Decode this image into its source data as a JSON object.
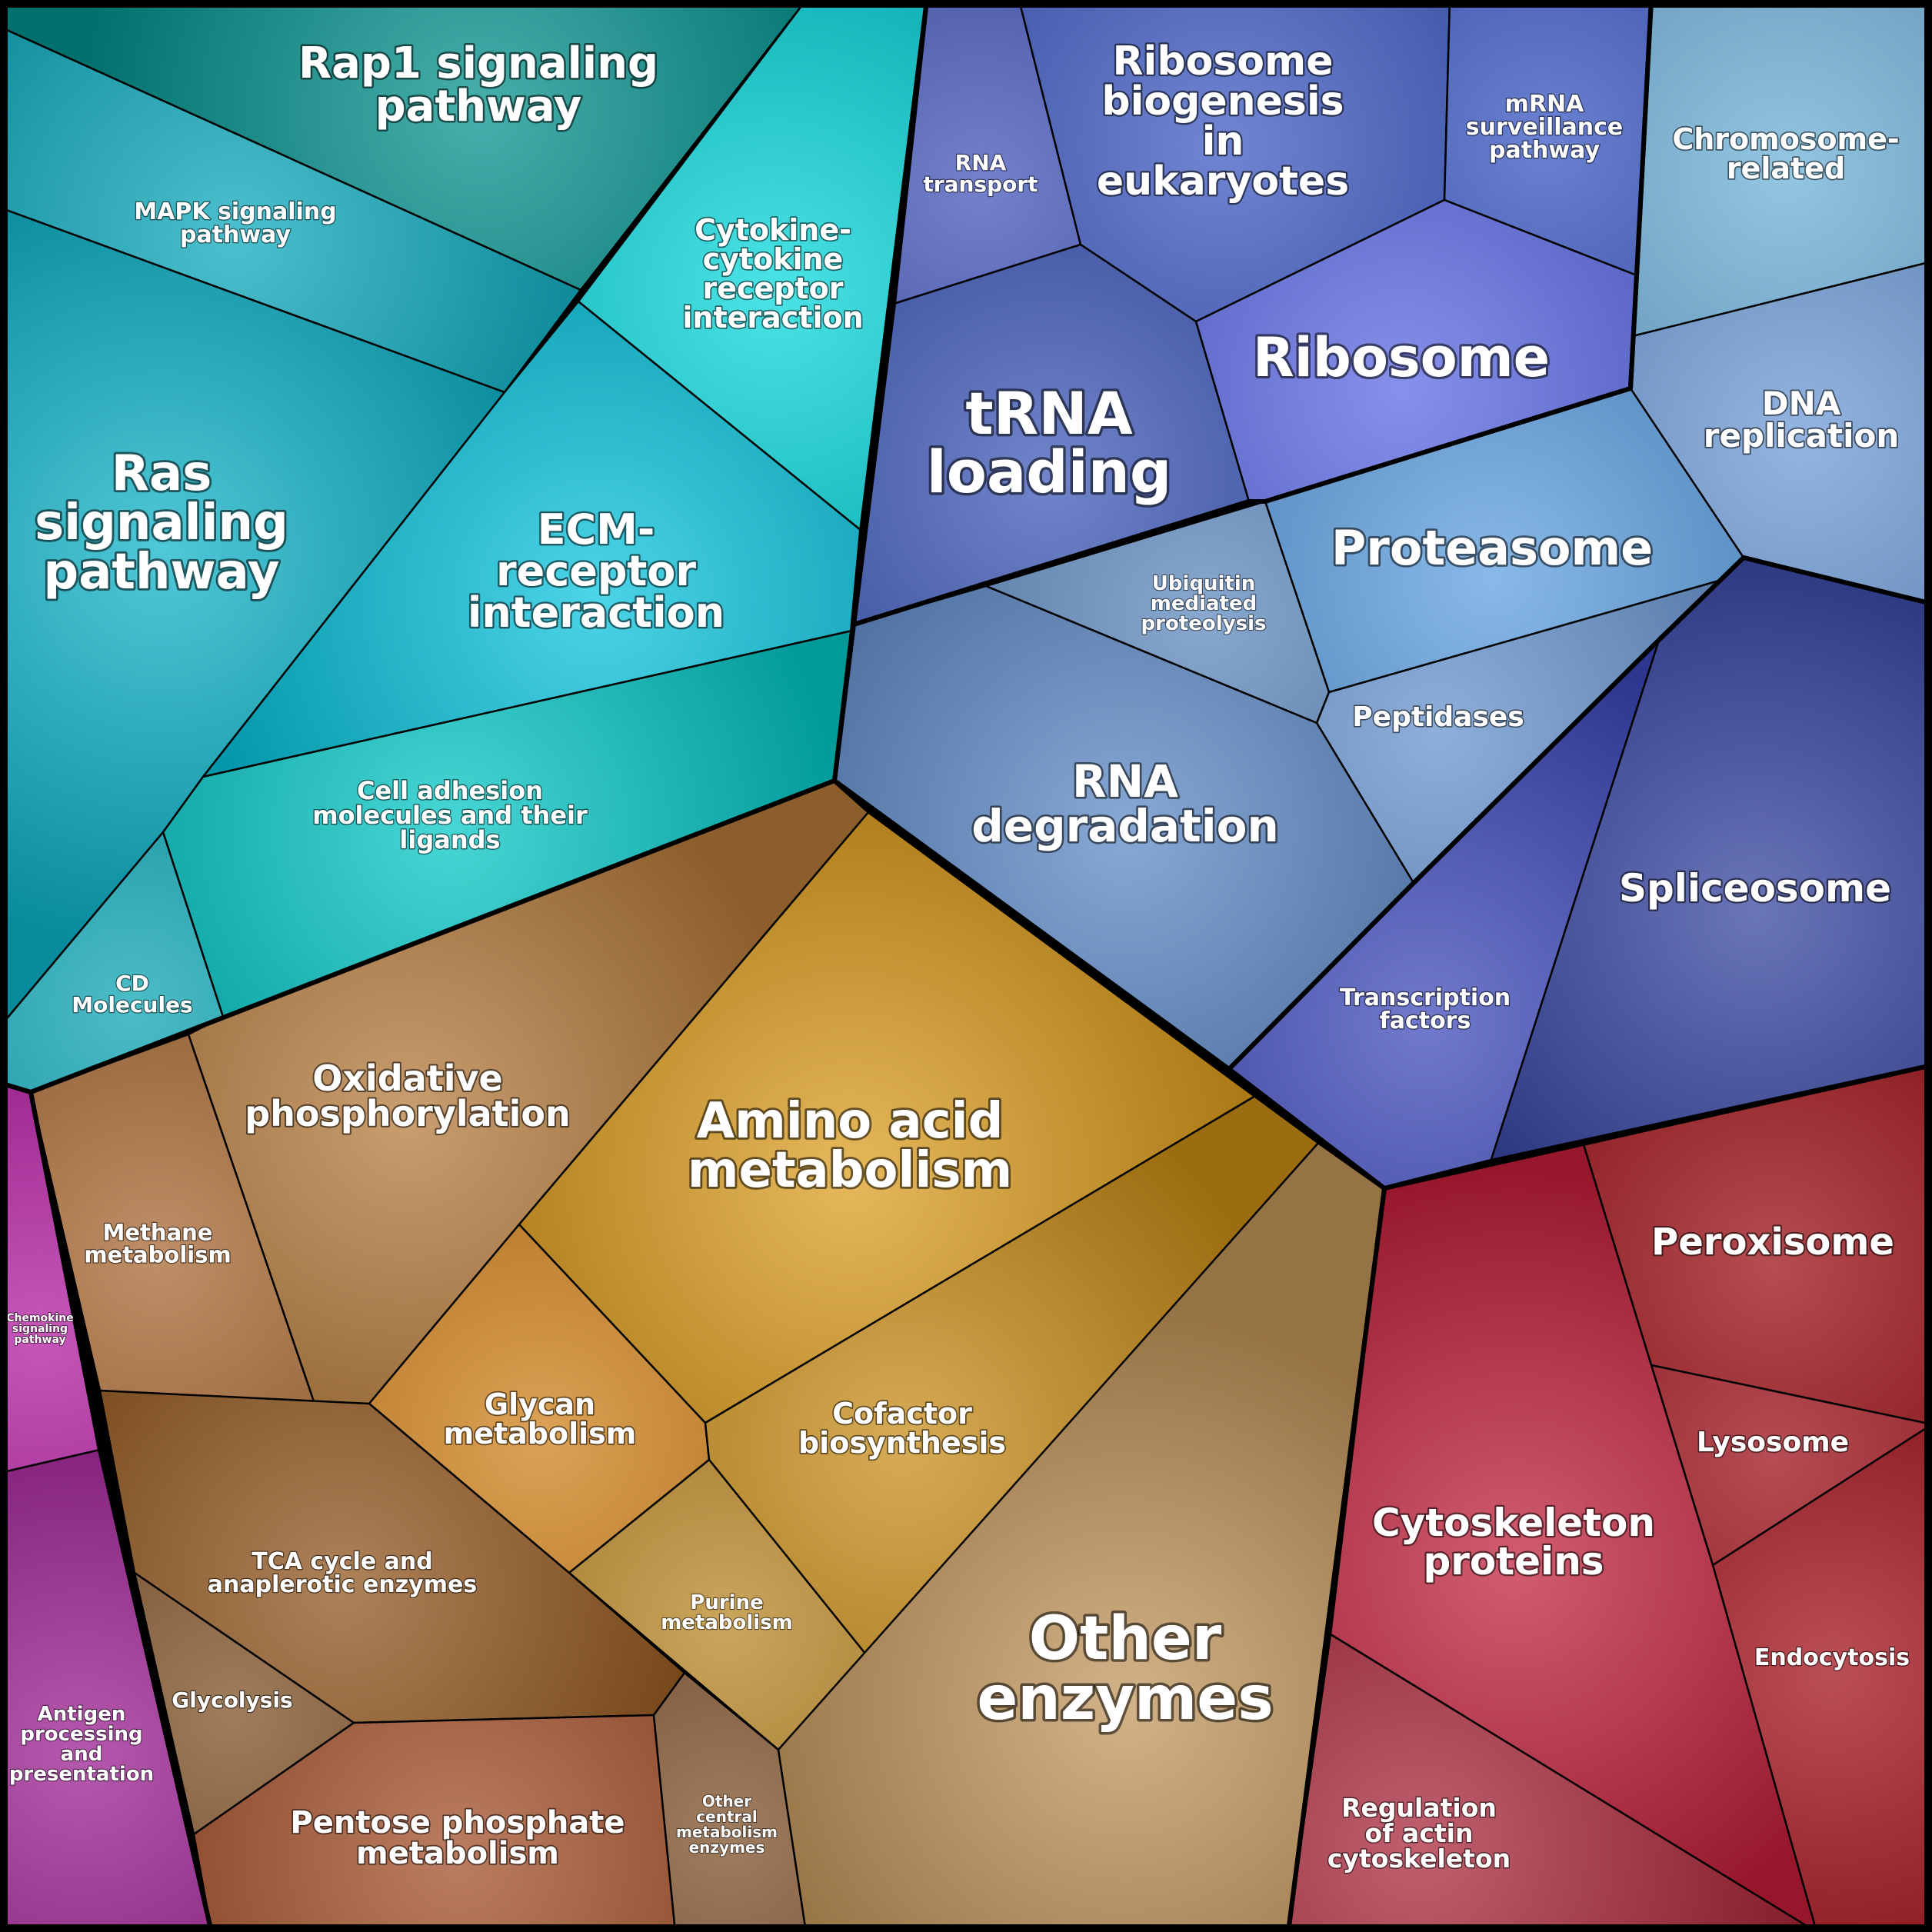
{
  "chart_data": {
    "type": "voronoi-treemap",
    "groups": [
      {
        "id": "signaling",
        "color": "#00c2cc",
        "cells": [
          {
            "id": "rap1",
            "label": "Rap1 signaling pathway",
            "color": "#00908c"
          },
          {
            "id": "mapk",
            "label": "MAPK signaling pathway",
            "color": "#06a7bb"
          },
          {
            "id": "ras",
            "label": "Ras signaling pathway",
            "color": "#0ab2c8"
          },
          {
            "id": "cytokine",
            "label": "Cytokine-cytokine receptor interaction",
            "color": "#05d8dc"
          },
          {
            "id": "ecm",
            "label": "ECM-receptor interaction",
            "color": "#06c3dd"
          },
          {
            "id": "celladh",
            "label": "Cell adhesion molecules and their ligands",
            "color": "#00c6c4"
          },
          {
            "id": "cd",
            "label": "CD Molecules",
            "color": "#05a3b2"
          }
        ]
      },
      {
        "id": "genetic-info",
        "color": "#4a5cd0",
        "cells": [
          {
            "id": "rnatransport",
            "label": "RNA transport",
            "color": "#3e50b8"
          },
          {
            "id": "ribobio",
            "label": "Ribosome biogenesis in eukaryotes",
            "color": "#3a57c2"
          },
          {
            "id": "mrna",
            "label": "mRNA surveillance pathway",
            "color": "#3150c0"
          },
          {
            "id": "trna",
            "label": "tRNA loading",
            "color": "#3a55b8"
          },
          {
            "id": "ribosome",
            "label": "Ribosome",
            "color": "#5866e4"
          },
          {
            "id": "spliceosome",
            "label": "Spliceosome",
            "color": "#30409e"
          },
          {
            "id": "transcription",
            "label": "Transcription factors",
            "color": "#3a46b8"
          }
        ]
      },
      {
        "id": "protein-processing",
        "color": "#5a8cc8",
        "cells": [
          {
            "id": "chromosome",
            "label": "Chromosome-related",
            "color": "#6ab0d8"
          },
          {
            "id": "dnarep",
            "label": "DNA replication",
            "color": "#6a98d6"
          },
          {
            "id": "proteasome",
            "label": "Proteasome",
            "color": "#5a9ee0"
          },
          {
            "id": "ubiquitin",
            "label": "Ubiquitin mediated proteolysis",
            "color": "#5a86bc"
          },
          {
            "id": "peptidases",
            "label": "Peptidases",
            "color": "#6290cc"
          },
          {
            "id": "rnadeg",
            "label": "RNA degradation",
            "color": "#5a86c4"
          }
        ]
      },
      {
        "id": "metabolism",
        "color": "#d8961e",
        "cells": [
          {
            "id": "oxphos",
            "label": "Oxidative phosphorylation",
            "color": "#b47838"
          },
          {
            "id": "aminoacid",
            "label": "Amino acid metabolism",
            "color": "#dc9c1c"
          },
          {
            "id": "methane",
            "label": "Methane metabolism",
            "color": "#a6642c"
          },
          {
            "id": "glycan",
            "label": "Glycan metabolism",
            "color": "#d07e14"
          },
          {
            "id": "cofactor",
            "label": "Cofactor biosynthesis",
            "color": "#c88a14"
          },
          {
            "id": "purine",
            "label": "Purine metabolism",
            "color": "#b6821c"
          },
          {
            "id": "tca",
            "label": "TCA cycle and anaplerotic enzymes",
            "color": "#8e5218"
          },
          {
            "id": "glycolysis",
            "label": "Glycolysis",
            "color": "#7a4a1e"
          },
          {
            "id": "pentose",
            "label": "Pentose phosphate metabolism",
            "color": "#a14a24"
          },
          {
            "id": "othercentral",
            "label": "Other central metabolism enzymes",
            "color": "#7a4a24"
          },
          {
            "id": "otherenz",
            "label": "Other enzymes",
            "color": "#c09458"
          }
        ]
      },
      {
        "id": "cellular",
        "color": "#c01828",
        "cells": [
          {
            "id": "peroxisome",
            "label": "Peroxisome",
            "color": "#98080e"
          },
          {
            "id": "lysosome",
            "label": "Lysosome",
            "color": "#9a0812"
          },
          {
            "id": "endocytosis",
            "label": "Endocytosis",
            "color": "#a00a14"
          },
          {
            "id": "cytoskel",
            "label": "Cytoskeleton proteins",
            "color": "#c01e38"
          },
          {
            "id": "actin",
            "label": "Regulation of actin cytoskeleton",
            "color": "#a82236"
          }
        ]
      },
      {
        "id": "immune",
        "color": "#a818a0",
        "cells": [
          {
            "id": "chemokine",
            "label": "Chemokine signaling pathway",
            "color": "#b0169e"
          },
          {
            "id": "antigen",
            "label": "Antigen processing and presentation",
            "color": "#98188e"
          }
        ]
      }
    ]
  }
}
